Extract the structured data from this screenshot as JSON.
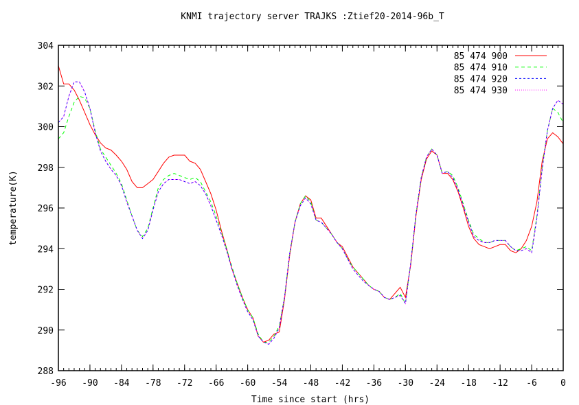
{
  "chart_data": {
    "type": "line",
    "title": "KNMI trajectory server TRAJKS :Ztief20-2014-96b_T",
    "xlabel": "Time since start (hrs)",
    "ylabel": "temperature(K)",
    "xlim": [
      -96,
      0
    ],
    "ylim": [
      288,
      304
    ],
    "xticks": [
      -96,
      -90,
      -84,
      -78,
      -72,
      -66,
      -60,
      -54,
      -48,
      -42,
      -36,
      -30,
      -24,
      -18,
      -12,
      -6,
      0
    ],
    "yticks": [
      288,
      290,
      292,
      294,
      296,
      298,
      300,
      302,
      304
    ],
    "grid": false,
    "legend_position": "top-right",
    "x": [
      -96,
      -95,
      -94,
      -93,
      -92,
      -91,
      -90,
      -89,
      -88,
      -87,
      -86,
      -85,
      -84,
      -83,
      -82,
      -81,
      -80,
      -79,
      -78,
      -77,
      -76,
      -75,
      -74,
      -73,
      -72,
      -71,
      -70,
      -69,
      -68,
      -67,
      -66,
      -65,
      -64,
      -63,
      -62,
      -61,
      -60,
      -59,
      -58,
      -57,
      -56,
      -55,
      -54,
      -53,
      -52,
      -51,
      -50,
      -49,
      -48,
      -47,
      -46,
      -45,
      -44,
      -43,
      -42,
      -41,
      -40,
      -39,
      -38,
      -37,
      -36,
      -35,
      -34,
      -33,
      -32,
      -31,
      -30,
      -29,
      -28,
      -27,
      -26,
      -25,
      -24,
      -23,
      -22,
      -21,
      -20,
      -19,
      -18,
      -17,
      -16,
      -15,
      -14,
      -13,
      -12,
      -11,
      -10,
      -9,
      -8,
      -7,
      -6,
      -5,
      -4,
      -3,
      -2,
      -1,
      0
    ],
    "series": [
      {
        "name": "85 474 900",
        "color": "#ff0000",
        "dash": "solid",
        "values": [
          303.0,
          302.1,
          302.1,
          301.8,
          301.3,
          300.7,
          300.1,
          299.6,
          299.2,
          298.95,
          298.85,
          298.6,
          298.3,
          297.9,
          297.3,
          297.0,
          297.0,
          297.2,
          297.4,
          297.8,
          298.2,
          298.5,
          298.6,
          298.6,
          298.6,
          298.3,
          298.2,
          297.9,
          297.3,
          296.7,
          295.9,
          294.9,
          294.0,
          293.0,
          292.3,
          291.6,
          291.0,
          290.6,
          289.7,
          289.4,
          289.5,
          289.8,
          289.9,
          291.5,
          293.7,
          295.3,
          296.2,
          296.6,
          296.4,
          295.5,
          295.5,
          295.1,
          294.7,
          294.3,
          294.1,
          293.6,
          293.1,
          292.8,
          292.5,
          292.2,
          292.0,
          291.9,
          291.6,
          291.5,
          291.8,
          292.1,
          291.6,
          293.2,
          295.6,
          297.4,
          298.4,
          298.8,
          298.6,
          297.7,
          297.7,
          297.4,
          296.8,
          296.0,
          295.1,
          294.5,
          294.2,
          294.1,
          294.0,
          294.1,
          294.2,
          294.2,
          293.9,
          293.8,
          294.0,
          294.4,
          295.1,
          296.3,
          298.3,
          299.4,
          299.7,
          299.5,
          299.15
        ]
      },
      {
        "name": "85 474 910",
        "color": "#00ff00",
        "dash": "dashed",
        "values": [
          299.4,
          299.7,
          300.5,
          301.2,
          301.5,
          301.4,
          300.9,
          299.8,
          298.9,
          298.5,
          298.1,
          297.7,
          297.2,
          296.4,
          295.6,
          294.9,
          294.6,
          295.0,
          296.0,
          297.0,
          297.4,
          297.6,
          297.7,
          297.6,
          297.5,
          297.4,
          297.5,
          297.3,
          296.8,
          296.3,
          295.6,
          294.8,
          294.0,
          293.1,
          292.3,
          291.6,
          291.0,
          290.6,
          289.8,
          289.4,
          289.4,
          289.7,
          290.2,
          291.6,
          293.8,
          295.3,
          296.2,
          296.6,
          296.3,
          295.4,
          295.3,
          295.0,
          294.7,
          294.3,
          294.0,
          293.5,
          293.1,
          292.8,
          292.5,
          292.2,
          292.0,
          291.9,
          291.6,
          291.5,
          291.6,
          291.8,
          291.3,
          293.3,
          295.7,
          297.5,
          298.5,
          298.9,
          298.6,
          297.7,
          297.8,
          297.6,
          297.0,
          296.2,
          295.4,
          294.7,
          294.5,
          294.3,
          294.3,
          294.4,
          294.4,
          294.4,
          294.1,
          293.9,
          294.0,
          294.1,
          293.9,
          295.6,
          298.0,
          299.8,
          300.9,
          300.7,
          300.2
        ]
      },
      {
        "name": "85 474 920",
        "color": "#0000ff",
        "dash": "short-dashed",
        "values": [
          300.2,
          300.5,
          301.5,
          302.2,
          302.2,
          301.7,
          300.9,
          299.7,
          298.8,
          298.3,
          297.9,
          297.6,
          297.1,
          296.3,
          295.6,
          294.9,
          294.5,
          294.9,
          295.9,
          296.8,
          297.2,
          297.4,
          297.4,
          297.4,
          297.3,
          297.2,
          297.3,
          297.1,
          296.7,
          296.1,
          295.4,
          294.7,
          293.9,
          293.0,
          292.2,
          291.5,
          290.9,
          290.5,
          289.7,
          289.4,
          289.3,
          289.6,
          290.1,
          291.6,
          293.8,
          295.3,
          296.1,
          296.5,
          296.2,
          295.4,
          295.3,
          295.0,
          294.7,
          294.3,
          294.0,
          293.5,
          293.0,
          292.7,
          292.4,
          292.2,
          292.0,
          291.9,
          291.6,
          291.5,
          291.6,
          291.7,
          291.3,
          293.3,
          295.7,
          297.5,
          298.5,
          298.9,
          298.6,
          297.7,
          297.8,
          297.5,
          296.9,
          296.1,
          295.3,
          294.6,
          294.4,
          294.3,
          294.3,
          294.4,
          294.4,
          294.4,
          294.1,
          293.9,
          293.9,
          294.0,
          293.8,
          295.5,
          297.9,
          299.8,
          300.9,
          301.3,
          301.1
        ]
      },
      {
        "name": "85 474 930",
        "color": "#ff00ff",
        "dash": "dotted",
        "values": [
          300.2,
          300.5,
          301.5,
          302.2,
          302.2,
          301.7,
          300.9,
          299.7,
          298.8,
          298.3,
          297.9,
          297.6,
          297.1,
          296.3,
          295.6,
          294.9,
          294.5,
          294.9,
          295.9,
          296.8,
          297.2,
          297.4,
          297.4,
          297.4,
          297.3,
          297.2,
          297.3,
          297.1,
          296.7,
          296.1,
          295.4,
          294.7,
          293.9,
          293.0,
          292.2,
          291.5,
          290.9,
          290.5,
          289.7,
          289.4,
          289.3,
          289.6,
          290.1,
          291.6,
          293.8,
          295.3,
          296.1,
          296.5,
          296.2,
          295.4,
          295.3,
          295.0,
          294.7,
          294.3,
          294.0,
          293.5,
          293.0,
          292.7,
          292.4,
          292.2,
          292.0,
          291.9,
          291.6,
          291.5,
          291.6,
          291.7,
          291.3,
          293.3,
          295.7,
          297.5,
          298.5,
          298.9,
          298.6,
          297.7,
          297.8,
          297.5,
          296.9,
          296.1,
          295.3,
          294.6,
          294.4,
          294.3,
          294.3,
          294.4,
          294.4,
          294.4,
          294.1,
          293.9,
          293.9,
          294.0,
          293.8,
          295.5,
          297.9,
          299.8,
          300.9,
          301.3,
          301.1
        ]
      }
    ]
  }
}
